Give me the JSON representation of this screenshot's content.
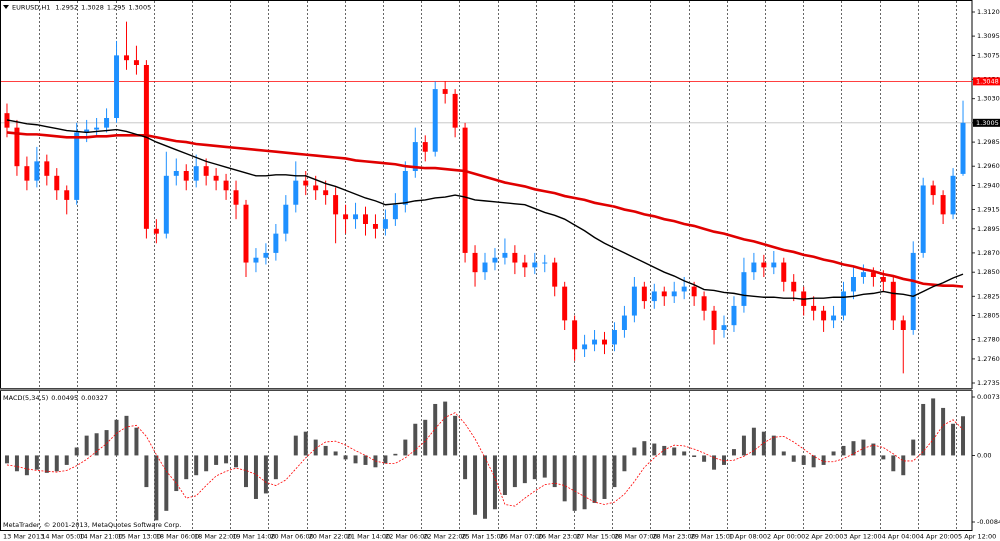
{
  "chart_data": [
    {
      "type": "candlestick",
      "title": "EURUSD,H1",
      "xticks": [
        "13 Mar 2013",
        "14 Mar 05:00",
        "14 Mar 21:00",
        "15 Mar 13:00",
        "18 Mar 06:00",
        "18 Mar 22:00",
        "19 Mar 14:00",
        "20 Mar 06:00",
        "20 Mar 22:00",
        "21 Mar 14:00",
        "22 Mar 06:00",
        "22 Mar 22:00",
        "25 Mar 15:00",
        "26 Mar 07:00",
        "26 Mar 23:00",
        "27 Mar 15:00",
        "28 Mar 07:00",
        "28 Mar 23:00",
        "29 Mar 15:00",
        "1 Apr 08:00",
        "2 Apr 00:00",
        "2 Apr 20:00",
        "3 Apr 12:00",
        "4 Apr 04:00",
        "4 Apr 20:00",
        "5 Apr 12:00"
      ],
      "ylim": [
        1.2735,
        1.312
      ],
      "yticks": [
        {
          "value": 1.312,
          "label": "1.3120"
        },
        1.3095,
        1.3075,
        {
          "value": 1.305,
          "label": "1.3050"
        },
        {
          "value": 1.303,
          "label": "1.3030"
        },
        1.3005,
        1.2985,
        {
          "value": 1.296,
          "label": "1.2960"
        },
        {
          "value": 1.294,
          "label": "1.2940"
        },
        1.2915,
        1.2895,
        {
          "value": 1.287,
          "label": "1.2870"
        },
        {
          "value": 1.285,
          "label": "1.2850"
        },
        1.2825,
        1.2805,
        {
          "value": 1.278,
          "label": "1.2780"
        },
        {
          "value": 1.276,
          "label": "1.2760"
        },
        1.2735
      ],
      "up_color": "#1e90ff",
      "down_color": "#ff0000",
      "open": [
        1.3015,
        1.3,
        1.296,
        1.2945,
        1.2965,
        1.295,
        1.2935,
        1.2925,
        1.2995,
        1.2998,
        1.3,
        1.301,
        1.3075,
        1.307,
        1.3065,
        1.2895,
        1.289,
        1.295,
        1.2955,
        1.2945,
        1.296,
        1.295,
        1.2945,
        1.2935,
        1.292,
        1.286,
        1.2865,
        1.287,
        1.289,
        1.292,
        1.2945,
        1.294,
        1.2935,
        1.293,
        1.291,
        1.2905,
        1.291,
        1.29,
        1.2895,
        1.2905,
        1.292,
        1.2955,
        1.2985,
        1.2975,
        1.304,
        1.3035,
        1.3,
        1.287,
        1.285,
        1.286,
        1.2865,
        1.287,
        1.286,
        1.2855,
        1.286,
        1.286,
        1.2835,
        1.28,
        1.277,
        1.2775,
        1.278,
        1.2775,
        1.279,
        1.2805,
        1.2835,
        1.282,
        1.283,
        1.2825,
        1.283,
        1.2835,
        1.2825,
        1.281,
        1.279,
        1.2795,
        1.2815,
        1.285,
        1.286,
        1.2855,
        1.286,
        1.284,
        1.283,
        1.2815,
        1.281,
        1.28,
        1.2805,
        1.283,
        1.2845,
        1.285,
        1.2845,
        1.284,
        1.28,
        1.279,
        1.287,
        1.294,
        1.293,
        1.291,
        1.2952
      ],
      "high": [
        1.3025,
        1.3008,
        1.297,
        1.298,
        1.2972,
        1.2958,
        1.294,
        1.3005,
        1.3008,
        1.301,
        1.302,
        1.309,
        1.311,
        1.3085,
        1.307,
        1.2905,
        1.2975,
        1.2968,
        1.2962,
        1.2972,
        1.2968,
        1.2958,
        1.2952,
        1.2945,
        1.2925,
        1.2875,
        1.288,
        1.29,
        1.293,
        1.2965,
        1.2955,
        1.295,
        1.2945,
        1.2938,
        1.292,
        1.2922,
        1.2918,
        1.291,
        1.2915,
        1.2932,
        1.2965,
        1.3,
        1.2992,
        1.3048,
        1.3048,
        1.304,
        1.3005,
        1.2878,
        1.287,
        1.2875,
        1.2885,
        1.2878,
        1.2868,
        1.287,
        1.2868,
        1.2865,
        1.284,
        1.2805,
        1.2785,
        1.279,
        1.2788,
        1.2798,
        1.2815,
        1.2845,
        1.284,
        1.2838,
        1.2835,
        1.284,
        1.2845,
        1.284,
        1.283,
        1.2815,
        1.2805,
        1.2825,
        1.2865,
        1.287,
        1.2868,
        1.2872,
        1.2865,
        1.2848,
        1.2835,
        1.2825,
        1.2815,
        1.2815,
        1.284,
        1.2855,
        1.2858,
        1.2855,
        1.2852,
        1.2845,
        1.2805,
        1.2882,
        1.2948,
        1.2945,
        1.2935,
        1.2958,
        1.3028
      ],
      "low": [
        1.299,
        1.295,
        1.2935,
        1.2938,
        1.294,
        1.2925,
        1.291,
        1.292,
        1.2985,
        1.299,
        1.2995,
        1.3005,
        1.306,
        1.3055,
        1.2885,
        1.288,
        1.2885,
        1.294,
        1.2935,
        1.2938,
        1.294,
        1.2935,
        1.2925,
        1.2905,
        1.2845,
        1.285,
        1.2858,
        1.2862,
        1.2882,
        1.2912,
        1.293,
        1.2925,
        1.292,
        1.288,
        1.289,
        1.2895,
        1.2888,
        1.2885,
        1.2888,
        1.2898,
        1.2912,
        1.2948,
        1.2965,
        1.297,
        1.3025,
        1.299,
        1.286,
        1.2835,
        1.2842,
        1.2852,
        1.2858,
        1.2848,
        1.2845,
        1.2848,
        1.285,
        1.2825,
        1.279,
        1.2758,
        1.2762,
        1.2768,
        1.2765,
        1.2768,
        1.2782,
        1.2798,
        1.2812,
        1.2812,
        1.2815,
        1.2818,
        1.2822,
        1.2815,
        1.28,
        1.2775,
        1.2782,
        1.2788,
        1.2808,
        1.2842,
        1.2845,
        1.2848,
        1.283,
        1.282,
        1.2805,
        1.28,
        1.2788,
        1.2792,
        1.28,
        1.2822,
        1.2838,
        1.2835,
        1.283,
        1.279,
        1.2745,
        1.2785,
        1.2865,
        1.292,
        1.29,
        1.2905,
        1.295
      ],
      "close": [
        1.3,
        1.296,
        1.2945,
        1.2965,
        1.295,
        1.2935,
        1.2925,
        1.2995,
        1.2998,
        1.3,
        1.301,
        1.3075,
        1.307,
        1.3065,
        1.2895,
        1.289,
        1.295,
        1.2955,
        1.2945,
        1.296,
        1.295,
        1.2945,
        1.2935,
        1.292,
        1.286,
        1.2865,
        1.287,
        1.289,
        1.292,
        1.2945,
        1.294,
        1.2935,
        1.293,
        1.291,
        1.2905,
        1.291,
        1.29,
        1.2895,
        1.2905,
        1.292,
        1.2955,
        1.2985,
        1.2975,
        1.304,
        1.3035,
        1.3,
        1.287,
        1.285,
        1.286,
        1.2865,
        1.287,
        1.286,
        1.2855,
        1.286,
        1.286,
        1.2835,
        1.28,
        1.277,
        1.2775,
        1.278,
        1.2775,
        1.279,
        1.2805,
        1.2835,
        1.282,
        1.283,
        1.2825,
        1.283,
        1.2835,
        1.2825,
        1.281,
        1.279,
        1.2795,
        1.2815,
        1.285,
        1.286,
        1.2855,
        1.286,
        1.284,
        1.283,
        1.2815,
        1.281,
        1.28,
        1.2805,
        1.283,
        1.2845,
        1.285,
        1.2845,
        1.284,
        1.28,
        1.279,
        1.287,
        1.294,
        1.293,
        1.291,
        1.295,
        1.3005
      ],
      "lines": [
        {
          "color": "#e00000",
          "width": 2.6,
          "values": [
            1.2995,
            1.2994,
            1.2993,
            1.2993,
            1.2992,
            1.2991,
            1.299,
            1.299,
            1.299,
            1.2991,
            1.2991,
            1.2992,
            1.2992,
            1.2992,
            1.2992,
            1.299,
            1.2988,
            1.2986,
            1.2985,
            1.2983,
            1.2982,
            1.2981,
            1.298,
            1.2979,
            1.2978,
            1.2977,
            1.2976,
            1.2975,
            1.2974,
            1.2973,
            1.2972,
            1.2971,
            1.297,
            1.2969,
            1.2968,
            1.2966,
            1.2965,
            1.2964,
            1.2963,
            1.2962,
            1.296,
            1.2959,
            1.2958,
            1.2958,
            1.2957,
            1.2956,
            1.2955,
            1.2952,
            1.2949,
            1.2946,
            1.2943,
            1.2941,
            1.2939,
            1.2936,
            1.2934,
            1.2932,
            1.2929,
            1.2927,
            1.2925,
            1.2922,
            1.292,
            1.2918,
            1.2915,
            1.2913,
            1.291,
            1.2908,
            1.2905,
            1.2903,
            1.29,
            1.2898,
            1.2895,
            1.2892,
            1.289,
            1.2887,
            1.2884,
            1.2882,
            1.2879,
            1.2876,
            1.2873,
            1.2871,
            1.2868,
            1.2866,
            1.2863,
            1.2861,
            1.2858,
            1.2856,
            1.2853,
            1.2851,
            1.2848,
            1.2846,
            1.2843,
            1.2841,
            1.2838,
            1.2837,
            1.2836,
            1.2836,
            1.2835
          ]
        },
        {
          "color": "#000000",
          "width": 1.4,
          "values": [
            1.3008,
            1.3006,
            1.3004,
            1.3003,
            1.3001,
            1.2999,
            1.2997,
            1.2996,
            1.2995,
            1.2996,
            1.2997,
            1.2998,
            1.2996,
            1.2993,
            1.299,
            1.2985,
            1.2981,
            1.2977,
            1.2973,
            1.2969,
            1.2965,
            1.2962,
            1.2959,
            1.2956,
            1.2953,
            1.295,
            1.295,
            1.2951,
            1.2951,
            1.295,
            1.295,
            1.2946,
            1.2942,
            1.2939,
            1.2935,
            1.2931,
            1.2927,
            1.2924,
            1.292,
            1.2921,
            1.2922,
            1.2924,
            1.2925,
            1.2927,
            1.2928,
            1.293,
            1.2928,
            1.2925,
            1.2924,
            1.2923,
            1.2922,
            1.2921,
            1.292,
            1.2916,
            1.2912,
            1.2909,
            1.2905,
            1.2899,
            1.2893,
            1.2886,
            1.288,
            1.2875,
            1.287,
            1.2865,
            1.286,
            1.2855,
            1.285,
            1.2846,
            1.2841,
            1.2837,
            1.2832,
            1.2831,
            1.2829,
            1.2828,
            1.2826,
            1.2825,
            1.2824,
            1.2824,
            1.2823,
            1.2823,
            1.2822,
            1.2823,
            1.2823,
            1.2824,
            1.2824,
            1.2825,
            1.2827,
            1.2828,
            1.283,
            1.2828,
            1.2827,
            1.2825,
            1.283,
            1.2835,
            1.2839,
            1.2844,
            1.2848
          ]
        }
      ],
      "level": {
        "value": 1.3048,
        "color": "#ff0000"
      },
      "bid": 1.3005
    },
    {
      "type": "bar",
      "title": "MACD(5,34,5)",
      "color": "#505050",
      "ylim": [
        -0.00841,
        0.00738
      ],
      "yticks": [
        0.00738,
        {
          "value": 0,
          "label": "0.00"
        },
        -0.00841
      ],
      "values": [
        -0.001,
        -0.002,
        -0.0025,
        -0.0018,
        -0.0022,
        -0.002,
        -0.0012,
        0.001,
        0.0025,
        0.0028,
        0.0032,
        0.0045,
        0.005,
        0.0035,
        -0.004,
        -0.0082,
        -0.007,
        -0.0045,
        -0.003,
        -0.0025,
        -0.002,
        -0.0012,
        -0.001,
        -0.0015,
        -0.004,
        -0.0055,
        -0.0048,
        -0.003,
        0.0,
        0.0025,
        0.003,
        0.002,
        0.0012,
        0.0005,
        -0.0005,
        -0.001,
        -0.0012,
        -0.0015,
        -0.001,
        0.0002,
        0.002,
        0.004,
        0.0045,
        0.0065,
        0.0068,
        0.005,
        -0.003,
        -0.0075,
        -0.008,
        -0.0068,
        -0.005,
        -0.004,
        -0.0035,
        -0.003,
        -0.0028,
        -0.004,
        -0.0058,
        -0.007,
        -0.0068,
        -0.006,
        -0.0055,
        -0.004,
        -0.002,
        0.001,
        0.0018,
        0.0015,
        0.0012,
        0.001,
        0.0005,
        -0.0002,
        -0.0008,
        -0.0018,
        -0.0012,
        0.0008,
        0.0025,
        0.0035,
        0.003,
        0.0025,
        0.0005,
        -0.0008,
        -0.0012,
        -0.0015,
        -0.0012,
        0.0005,
        0.0012,
        0.0018,
        0.002,
        0.0015,
        -0.0005,
        -0.002,
        -0.0025,
        0.002,
        0.0065,
        0.0072,
        0.006,
        0.004,
        0.00495
      ],
      "signal": {
        "color": "#ff0000",
        "values": [
          -0.0012,
          -0.0014,
          -0.0017,
          -0.0019,
          -0.002,
          -0.0021,
          -0.0019,
          -0.0013,
          -0.0005,
          0.0005,
          0.0015,
          0.0028,
          0.0036,
          0.0038,
          0.0024,
          0.0001,
          -0.002,
          -0.0035,
          -0.0054,
          -0.0051,
          -0.0038,
          -0.0026,
          -0.002,
          -0.0016,
          -0.0019,
          -0.0024,
          -0.0034,
          -0.0038,
          -0.0031,
          -0.0017,
          -0.0003,
          0.0009,
          0.0017,
          0.0018,
          0.0013,
          0.0006,
          0.0,
          -0.0007,
          -0.001,
          -0.001,
          -0.0003,
          0.0007,
          0.0018,
          0.0034,
          0.0048,
          0.0054,
          0.004,
          0.0021,
          -0.0003,
          -0.0028,
          -0.0062,
          -0.0064,
          -0.0054,
          -0.0045,
          -0.0037,
          -0.0035,
          -0.0038,
          -0.0045,
          -0.0052,
          -0.0059,
          -0.0062,
          -0.0059,
          -0.0049,
          -0.0033,
          -0.0015,
          -0.0003,
          0.0007,
          0.0013,
          0.0012,
          0.0008,
          0.0003,
          -0.0003,
          -0.0007,
          -0.0006,
          -0.0001,
          0.0006,
          0.0016,
          0.0023,
          0.0024,
          0.0017,
          0.0008,
          -0.0001,
          -0.0008,
          -0.0008,
          -0.0004,
          0.0002,
          0.0009,
          0.0013,
          0.001,
          0.0002,
          -0.0007,
          -0.0007,
          0.0005,
          0.002,
          0.0038,
          0.0045,
          0.00327
        ]
      }
    }
  ],
  "footer": "MetaTrader, © 2001-2013, MetaQuotes Software Corp."
}
